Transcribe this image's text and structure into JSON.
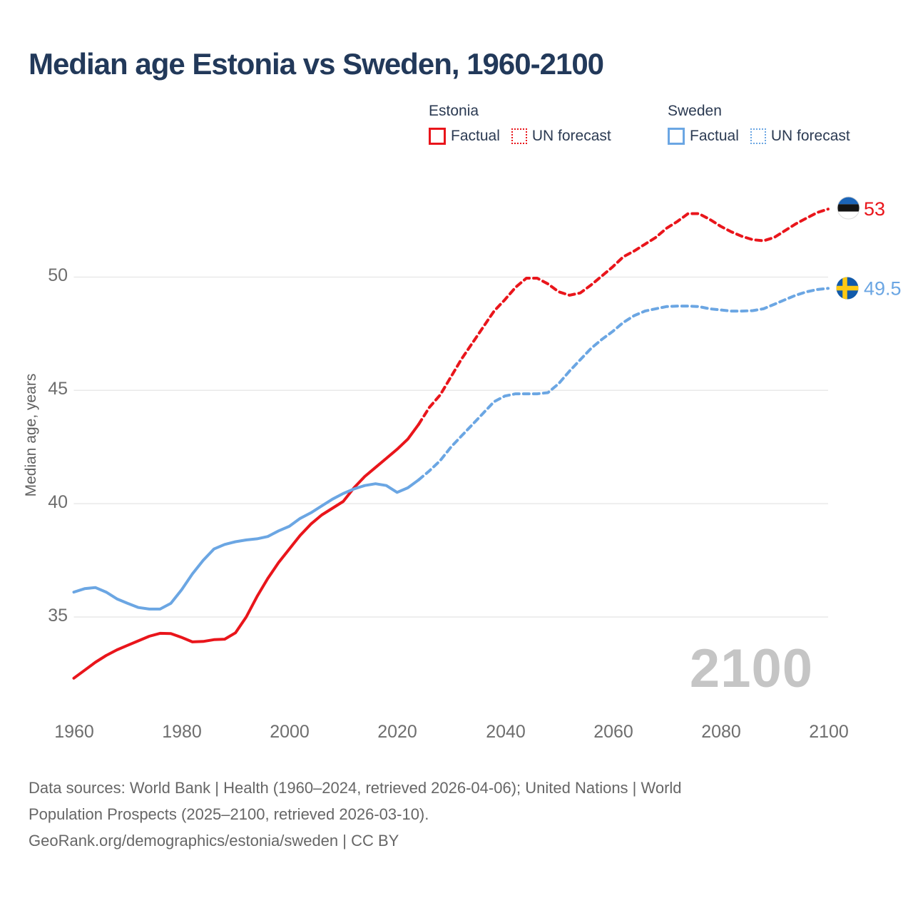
{
  "title": "Median age Estonia vs Sweden, 1960-2100",
  "legend": {
    "estonia": {
      "label": "Estonia",
      "factual": "Factual",
      "forecast": "UN forecast",
      "color": "#e9151b"
    },
    "sweden": {
      "label": "Sweden",
      "factual": "Factual",
      "forecast": "UN forecast",
      "color": "#6ba6e3"
    }
  },
  "chart_data": {
    "type": "line",
    "title": "Median age Estonia vs Sweden, 1960-2100",
    "xlabel": "",
    "ylabel": "Median age, years",
    "x_ticks": [
      1960,
      1980,
      2000,
      2020,
      2040,
      2060,
      2080,
      2100
    ],
    "y_ticks": [
      50,
      45,
      40,
      35
    ],
    "xlim": [
      1960,
      2100
    ],
    "ylim": [
      32,
      54
    ],
    "grid": "horizontal-only",
    "legend_position": "top-right",
    "watermark": "2100",
    "end_labels": {
      "estonia": "53",
      "sweden": "49.5"
    },
    "series": [
      {
        "name": "Estonia factual",
        "style": "solid",
        "color": "#e9151b",
        "points": [
          [
            1960,
            32.3
          ],
          [
            1962,
            32.65
          ],
          [
            1964,
            33.0
          ],
          [
            1966,
            33.3
          ],
          [
            1968,
            33.55
          ],
          [
            1970,
            33.75
          ],
          [
            1972,
            33.95
          ],
          [
            1974,
            34.15
          ],
          [
            1976,
            34.28
          ],
          [
            1978,
            34.27
          ],
          [
            1980,
            34.1
          ],
          [
            1982,
            33.9
          ],
          [
            1984,
            33.92
          ],
          [
            1986,
            34.0
          ],
          [
            1988,
            34.02
          ],
          [
            1990,
            34.3
          ],
          [
            1992,
            35.0
          ],
          [
            1994,
            35.9
          ],
          [
            1996,
            36.7
          ],
          [
            1998,
            37.4
          ],
          [
            2000,
            38.0
          ],
          [
            2002,
            38.6
          ],
          [
            2004,
            39.1
          ],
          [
            2006,
            39.5
          ],
          [
            2008,
            39.8
          ],
          [
            2010,
            40.1
          ],
          [
            2012,
            40.7
          ],
          [
            2014,
            41.2
          ],
          [
            2016,
            41.6
          ],
          [
            2018,
            42.0
          ],
          [
            2020,
            42.4
          ],
          [
            2022,
            42.85
          ],
          [
            2024,
            43.5
          ]
        ]
      },
      {
        "name": "Estonia UN forecast",
        "style": "dashed",
        "color": "#e9151b",
        "points": [
          [
            2024,
            43.5
          ],
          [
            2026,
            44.25
          ],
          [
            2028,
            44.8
          ],
          [
            2030,
            45.6
          ],
          [
            2032,
            46.4
          ],
          [
            2034,
            47.1
          ],
          [
            2036,
            47.8
          ],
          [
            2038,
            48.5
          ],
          [
            2040,
            49.0
          ],
          [
            2042,
            49.55
          ],
          [
            2044,
            49.95
          ],
          [
            2046,
            49.95
          ],
          [
            2048,
            49.7
          ],
          [
            2050,
            49.35
          ],
          [
            2052,
            49.2
          ],
          [
            2054,
            49.3
          ],
          [
            2056,
            49.65
          ],
          [
            2058,
            50.05
          ],
          [
            2060,
            50.45
          ],
          [
            2062,
            50.9
          ],
          [
            2064,
            51.15
          ],
          [
            2066,
            51.45
          ],
          [
            2068,
            51.75
          ],
          [
            2070,
            52.15
          ],
          [
            2072,
            52.45
          ],
          [
            2074,
            52.8
          ],
          [
            2076,
            52.8
          ],
          [
            2078,
            52.55
          ],
          [
            2080,
            52.25
          ],
          [
            2082,
            52.0
          ],
          [
            2084,
            51.8
          ],
          [
            2086,
            51.65
          ],
          [
            2088,
            51.6
          ],
          [
            2090,
            51.75
          ],
          [
            2092,
            52.05
          ],
          [
            2094,
            52.35
          ],
          [
            2096,
            52.6
          ],
          [
            2098,
            52.85
          ],
          [
            2100,
            53.0
          ]
        ]
      },
      {
        "name": "Sweden factual",
        "style": "solid",
        "color": "#6ba6e3",
        "points": [
          [
            1960,
            36.1
          ],
          [
            1962,
            36.25
          ],
          [
            1964,
            36.3
          ],
          [
            1966,
            36.1
          ],
          [
            1968,
            35.8
          ],
          [
            1970,
            35.6
          ],
          [
            1972,
            35.42
          ],
          [
            1974,
            35.35
          ],
          [
            1976,
            35.35
          ],
          [
            1978,
            35.6
          ],
          [
            1980,
            36.2
          ],
          [
            1982,
            36.9
          ],
          [
            1984,
            37.5
          ],
          [
            1986,
            38.0
          ],
          [
            1988,
            38.2
          ],
          [
            1990,
            38.32
          ],
          [
            1992,
            38.4
          ],
          [
            1994,
            38.45
          ],
          [
            1996,
            38.55
          ],
          [
            1998,
            38.8
          ],
          [
            2000,
            39.0
          ],
          [
            2002,
            39.35
          ],
          [
            2004,
            39.6
          ],
          [
            2006,
            39.9
          ],
          [
            2008,
            40.2
          ],
          [
            2010,
            40.45
          ],
          [
            2012,
            40.65
          ],
          [
            2014,
            40.8
          ],
          [
            2016,
            40.88
          ],
          [
            2018,
            40.8
          ],
          [
            2020,
            40.5
          ],
          [
            2022,
            40.7
          ],
          [
            2024,
            41.05
          ]
        ]
      },
      {
        "name": "Sweden UN forecast",
        "style": "dashed",
        "color": "#6ba6e3",
        "points": [
          [
            2024,
            41.05
          ],
          [
            2026,
            41.45
          ],
          [
            2028,
            41.9
          ],
          [
            2030,
            42.5
          ],
          [
            2032,
            43.0
          ],
          [
            2034,
            43.5
          ],
          [
            2036,
            44.0
          ],
          [
            2038,
            44.5
          ],
          [
            2040,
            44.75
          ],
          [
            2042,
            44.85
          ],
          [
            2044,
            44.85
          ],
          [
            2046,
            44.85
          ],
          [
            2048,
            44.9
          ],
          [
            2050,
            45.3
          ],
          [
            2052,
            45.85
          ],
          [
            2054,
            46.35
          ],
          [
            2056,
            46.85
          ],
          [
            2058,
            47.25
          ],
          [
            2060,
            47.6
          ],
          [
            2062,
            48.0
          ],
          [
            2064,
            48.3
          ],
          [
            2066,
            48.5
          ],
          [
            2068,
            48.6
          ],
          [
            2070,
            48.7
          ],
          [
            2072,
            48.72
          ],
          [
            2074,
            48.72
          ],
          [
            2076,
            48.7
          ],
          [
            2078,
            48.6
          ],
          [
            2080,
            48.55
          ],
          [
            2082,
            48.5
          ],
          [
            2084,
            48.5
          ],
          [
            2086,
            48.52
          ],
          [
            2088,
            48.6
          ],
          [
            2090,
            48.8
          ],
          [
            2092,
            49.0
          ],
          [
            2094,
            49.2
          ],
          [
            2096,
            49.35
          ],
          [
            2098,
            49.45
          ],
          [
            2100,
            49.5
          ]
        ]
      }
    ]
  },
  "footer": {
    "lines": [
      "Data sources: World Bank | Health (1960–2024, retrieved 2026-04-06); United Nations | World",
      "Population Prospects (2025–2100, retrieved 2026-03-10).",
      "GeoRank.org/demographics/estonia/sweden | CC BY"
    ]
  }
}
